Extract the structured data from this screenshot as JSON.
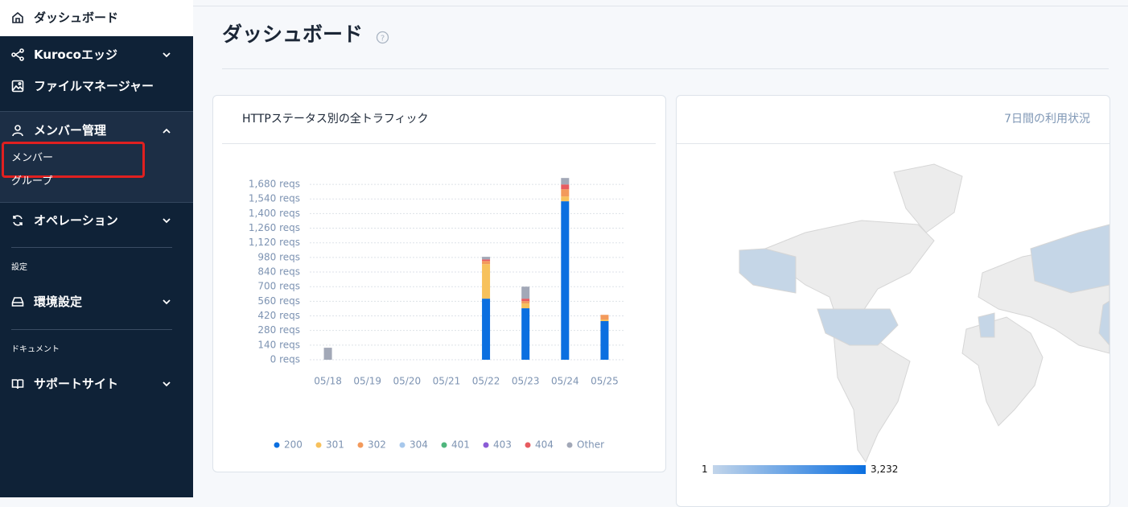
{
  "nav": {
    "dashboard": "ダッシュボード",
    "edge": "Kurocoエッジ",
    "files": "ファイルマネージャー",
    "members": {
      "title": "メンバー管理",
      "items": [
        "メンバー",
        "グループ"
      ]
    },
    "operation": "オペレーション",
    "settings_label": "設定",
    "env": "環境設定",
    "docs_label": "ドキュメント",
    "support": "サポートサイト"
  },
  "header": {
    "title": "ダッシュボード"
  },
  "chart_data": {
    "type": "bar",
    "stacked": true,
    "title": "HTTPステータス別の全トラフィック",
    "categories": [
      "05/18",
      "05/19",
      "05/20",
      "05/21",
      "05/22",
      "05/23",
      "05/24",
      "05/25"
    ],
    "series": [
      {
        "name": "200",
        "color": "#0b6fe0",
        "values": [
          0,
          0,
          0,
          0,
          585,
          493,
          1518,
          370
        ]
      },
      {
        "name": "301",
        "color": "#f7c15c",
        "values": [
          0,
          0,
          0,
          0,
          331,
          46,
          46,
          15
        ]
      },
      {
        "name": "302",
        "color": "#f39a5c",
        "values": [
          0,
          0,
          0,
          0,
          30,
          23,
          69,
          45
        ]
      },
      {
        "name": "304",
        "color": "#a7c8ec",
        "values": [
          0,
          0,
          0,
          0,
          0,
          0,
          0,
          0
        ]
      },
      {
        "name": "401",
        "color": "#4fb67d",
        "values": [
          0,
          0,
          0,
          0,
          0,
          0,
          0,
          0
        ]
      },
      {
        "name": "403",
        "color": "#8b5cd6",
        "values": [
          0,
          0,
          0,
          0,
          0,
          0,
          0,
          0
        ]
      },
      {
        "name": "404",
        "color": "#e75c60",
        "values": [
          0,
          0,
          0,
          0,
          15,
          23,
          46,
          0
        ]
      },
      {
        "name": "Other",
        "color": "#a2a8b7",
        "values": [
          115,
          0,
          0,
          0,
          25,
          115,
          62,
          0
        ]
      }
    ],
    "ylim": [
      0,
      1750
    ],
    "yticks": [
      {
        "value": 0,
        "label": "0 reqs"
      },
      {
        "value": 140,
        "label": "140 reqs"
      },
      {
        "value": 280,
        "label": "280 reqs"
      },
      {
        "value": 420,
        "label": "420 reqs"
      },
      {
        "value": 560,
        "label": "560 reqs"
      },
      {
        "value": 700,
        "label": "700 reqs"
      },
      {
        "value": 840,
        "label": "840 reqs"
      },
      {
        "value": 980,
        "label": "980 reqs"
      },
      {
        "value": 1120,
        "label": "1,120 reqs"
      },
      {
        "value": 1260,
        "label": "1,260 reqs"
      },
      {
        "value": 1400,
        "label": "1,400 reqs"
      },
      {
        "value": 1540,
        "label": "1,540 reqs"
      },
      {
        "value": 1680,
        "label": "1,680 reqs"
      }
    ],
    "grid": true
  },
  "map_panel": {
    "title": "7日間の利用状況",
    "legend_min": "1",
    "legend_max": "3,232"
  }
}
